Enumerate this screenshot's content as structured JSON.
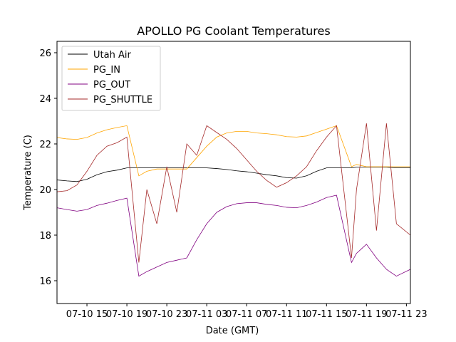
{
  "chart_data": {
    "type": "line",
    "title": "APOLLO PG Coolant Temperatures",
    "xlabel": "Date (GMT)",
    "ylabel": "Temperature (C)",
    "x_unit": "hours since 07-10 12:00 GMT",
    "xlim": [
      0,
      35.4
    ],
    "ylim": [
      15.0,
      26.5
    ],
    "yticks": [
      16,
      18,
      20,
      22,
      24,
      26
    ],
    "xticks": [
      {
        "value": 3,
        "label": "07-10 15"
      },
      {
        "value": 7,
        "label": "07-10 19"
      },
      {
        "value": 11,
        "label": "07-10 23"
      },
      {
        "value": 15,
        "label": "07-11 03"
      },
      {
        "value": 19,
        "label": "07-11 07"
      },
      {
        "value": 23,
        "label": "07-11 11"
      },
      {
        "value": 27,
        "label": "07-11 15"
      },
      {
        "value": 31,
        "label": "07-11 19"
      },
      {
        "value": 35,
        "label": "07-11 23"
      }
    ],
    "grid": false,
    "legend_position": "top-left",
    "series": [
      {
        "name": "Utah Air",
        "color": "#000000",
        "points": [
          [
            0,
            20.42
          ],
          [
            1,
            20.38
          ],
          [
            2,
            20.35
          ],
          [
            3,
            20.45
          ],
          [
            4,
            20.65
          ],
          [
            5,
            20.78
          ],
          [
            6,
            20.85
          ],
          [
            7,
            20.95
          ],
          [
            8.2,
            20.95
          ],
          [
            10,
            20.95
          ],
          [
            12,
            20.95
          ],
          [
            14,
            20.95
          ],
          [
            15,
            20.95
          ],
          [
            16,
            20.92
          ],
          [
            17,
            20.88
          ],
          [
            18,
            20.82
          ],
          [
            19,
            20.78
          ],
          [
            20,
            20.72
          ],
          [
            21,
            20.65
          ],
          [
            22,
            20.6
          ],
          [
            23,
            20.52
          ],
          [
            24,
            20.5
          ],
          [
            25,
            20.6
          ],
          [
            26,
            20.8
          ],
          [
            27,
            20.95
          ],
          [
            28,
            20.95
          ],
          [
            29.5,
            20.95
          ],
          [
            30,
            20.98
          ],
          [
            31,
            20.98
          ],
          [
            32,
            20.98
          ],
          [
            33,
            20.98
          ],
          [
            34,
            20.95
          ],
          [
            35.4,
            20.95
          ]
        ]
      },
      {
        "name": "PG_IN",
        "color": "#ffa500",
        "points": [
          [
            0,
            22.28
          ],
          [
            1,
            22.22
          ],
          [
            2,
            22.2
          ],
          [
            3,
            22.28
          ],
          [
            4,
            22.48
          ],
          [
            5,
            22.62
          ],
          [
            6,
            22.72
          ],
          [
            7,
            22.8
          ],
          [
            8.2,
            20.6
          ],
          [
            9,
            20.8
          ],
          [
            10,
            20.9
          ],
          [
            11,
            20.9
          ],
          [
            12,
            20.9
          ],
          [
            13,
            20.9
          ],
          [
            14,
            21.4
          ],
          [
            15,
            21.9
          ],
          [
            16,
            22.3
          ],
          [
            17,
            22.48
          ],
          [
            18,
            22.55
          ],
          [
            19,
            22.55
          ],
          [
            20,
            22.48
          ],
          [
            21,
            22.45
          ],
          [
            22,
            22.4
          ],
          [
            23,
            22.32
          ],
          [
            24,
            22.3
          ],
          [
            25,
            22.35
          ],
          [
            26,
            22.5
          ],
          [
            27,
            22.65
          ],
          [
            28,
            22.8
          ],
          [
            29.5,
            21.0
          ],
          [
            30,
            21.1
          ],
          [
            31,
            21.0
          ],
          [
            32,
            21.0
          ],
          [
            33,
            21.0
          ],
          [
            34,
            21.0
          ],
          [
            35.4,
            21.0
          ]
        ]
      },
      {
        "name": "PG_OUT",
        "color": "#800080",
        "points": [
          [
            0,
            19.2
          ],
          [
            1,
            19.12
          ],
          [
            2,
            19.05
          ],
          [
            3,
            19.12
          ],
          [
            4,
            19.3
          ],
          [
            5,
            19.4
          ],
          [
            6,
            19.52
          ],
          [
            7,
            19.62
          ],
          [
            8.2,
            16.2
          ],
          [
            9,
            16.4
          ],
          [
            10,
            16.6
          ],
          [
            11,
            16.8
          ],
          [
            12,
            16.9
          ],
          [
            13,
            17.0
          ],
          [
            14,
            17.8
          ],
          [
            15,
            18.5
          ],
          [
            16,
            19.0
          ],
          [
            17,
            19.25
          ],
          [
            18,
            19.38
          ],
          [
            19,
            19.42
          ],
          [
            20,
            19.42
          ],
          [
            21,
            19.35
          ],
          [
            22,
            19.3
          ],
          [
            23,
            19.22
          ],
          [
            24,
            19.2
          ],
          [
            25,
            19.3
          ],
          [
            26,
            19.45
          ],
          [
            27,
            19.65
          ],
          [
            28,
            19.75
          ],
          [
            29.5,
            16.8
          ],
          [
            30,
            17.2
          ],
          [
            31,
            17.6
          ],
          [
            32,
            17.0
          ],
          [
            33,
            16.5
          ],
          [
            34,
            16.2
          ],
          [
            35.4,
            16.5
          ]
        ]
      },
      {
        "name": "PG_SHUTTLE",
        "color": "#a52a2a",
        "points": [
          [
            0,
            19.9
          ],
          [
            1,
            19.95
          ],
          [
            2,
            20.2
          ],
          [
            3,
            20.8
          ],
          [
            4,
            21.5
          ],
          [
            5,
            21.9
          ],
          [
            6,
            22.05
          ],
          [
            7,
            22.3
          ],
          [
            8.2,
            16.8
          ],
          [
            9,
            20.0
          ],
          [
            10,
            18.5
          ],
          [
            11,
            21.0
          ],
          [
            12,
            19.0
          ],
          [
            13,
            22.0
          ],
          [
            14,
            21.5
          ],
          [
            15,
            22.8
          ],
          [
            16,
            22.5
          ],
          [
            17,
            22.2
          ],
          [
            18,
            21.8
          ],
          [
            19,
            21.3
          ],
          [
            20,
            20.8
          ],
          [
            21,
            20.4
          ],
          [
            22,
            20.1
          ],
          [
            23,
            20.3
          ],
          [
            24,
            20.6
          ],
          [
            25,
            21.0
          ],
          [
            26,
            21.7
          ],
          [
            27,
            22.3
          ],
          [
            28,
            22.8
          ],
          [
            29.5,
            17.0
          ],
          [
            30,
            20.0
          ],
          [
            31,
            22.9
          ],
          [
            32,
            18.2
          ],
          [
            33,
            22.9
          ],
          [
            34,
            18.5
          ],
          [
            35.4,
            18.0
          ]
        ]
      }
    ]
  }
}
